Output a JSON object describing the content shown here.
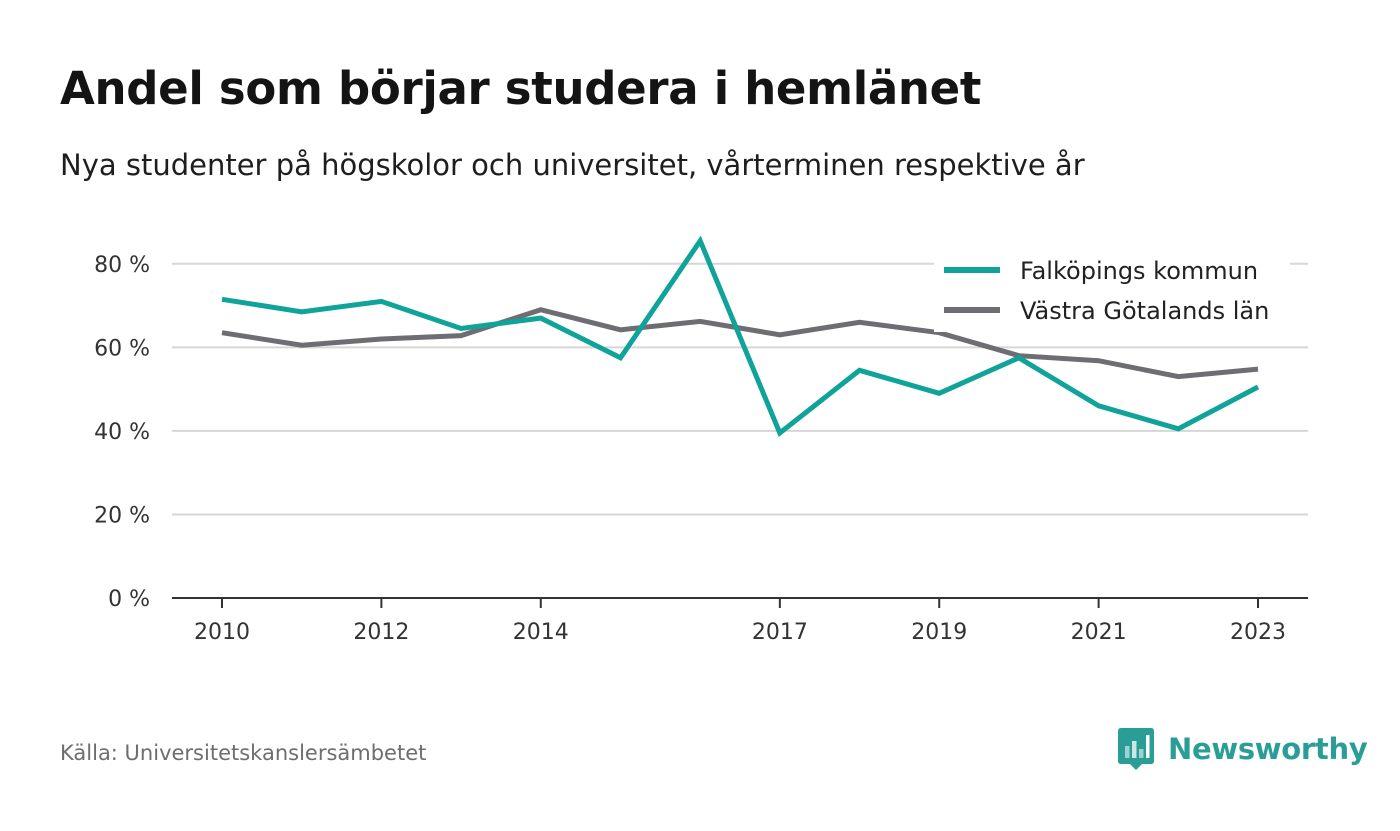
{
  "title": "Andel som börjar studera i hemlänet",
  "subtitle": "Nya studenter på högskolor och universitet, vårterminen respektive år",
  "source": "Källa: Universitetskanslersämbetet",
  "brand": {
    "name": "Newsworthy",
    "icon": "newsworthy-logo-icon",
    "color": "#2a9e96"
  },
  "chart_data": {
    "type": "line",
    "title": "Andel som börjar studera i hemlänet",
    "subtitle": "Nya studenter på högskolor och universitet, vårterminen respektive år",
    "x": [
      2010,
      2011,
      2012,
      2013,
      2014,
      2015,
      2016,
      2017,
      2018,
      2019,
      2020,
      2021,
      2022,
      2023
    ],
    "x_tick_labels": [
      "2010",
      "2012",
      "2014",
      "2017",
      "2019",
      "2021",
      "2023"
    ],
    "y_ticks": [
      0,
      20,
      40,
      60,
      80
    ],
    "y_tick_labels": [
      "0 %",
      "20 %",
      "40 %",
      "60 %",
      "80 %"
    ],
    "ylim": [
      0,
      90
    ],
    "xlabel": "",
    "ylabel": "",
    "grid": true,
    "legend_position": "top-right",
    "series": [
      {
        "name": "Falköpings kommun",
        "color": "#0fa39a",
        "values": [
          71.5,
          68.5,
          71,
          64.5,
          67,
          57.5,
          85.5,
          39.5,
          54.5,
          49,
          57.5,
          46,
          40.5,
          50.5
        ]
      },
      {
        "name": "Västra Götalands län",
        "color": "#6e6d74",
        "values": [
          63.5,
          60.5,
          62,
          62.8,
          69,
          64.2,
          66.2,
          63,
          66,
          63.5,
          58,
          56.8,
          53,
          54.8
        ]
      }
    ]
  }
}
